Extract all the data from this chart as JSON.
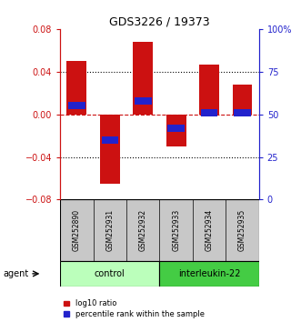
{
  "title": "GDS3226 / 19373",
  "samples": [
    "GSM252890",
    "GSM252931",
    "GSM252932",
    "GSM252933",
    "GSM252934",
    "GSM252935"
  ],
  "log10_ratio": [
    0.05,
    -0.065,
    0.068,
    -0.03,
    0.047,
    0.028
  ],
  "percentile_rank": [
    55,
    35,
    58,
    42,
    51,
    51
  ],
  "ylim_left": [
    -0.08,
    0.08
  ],
  "ylim_right": [
    0,
    100
  ],
  "yticks_left": [
    -0.08,
    -0.04,
    0,
    0.04,
    0.08
  ],
  "yticks_right": [
    0,
    25,
    50,
    75,
    100
  ],
  "bar_width": 0.6,
  "red_color": "#cc1111",
  "blue_color": "#2222cc",
  "label_bg_color": "#c8c8c8",
  "groups": [
    {
      "label": "control",
      "samples": [
        0,
        1,
        2
      ],
      "color": "#bbffbb"
    },
    {
      "label": "interleukin-22",
      "samples": [
        3,
        4,
        5
      ],
      "color": "#44cc44"
    }
  ],
  "legend_labels": [
    "log10 ratio",
    "percentile rank within the sample"
  ],
  "agent_label": "agent"
}
